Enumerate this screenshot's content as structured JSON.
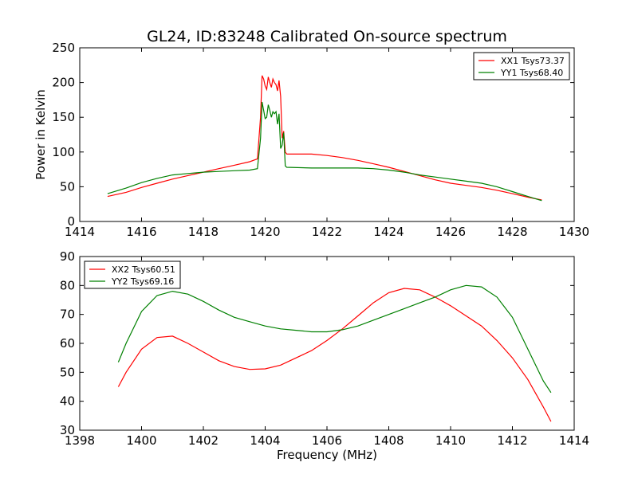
{
  "chart_data": [
    {
      "type": "line",
      "title": "GL24, ID:83248 Calibrated On-source spectrum",
      "xlabel": "",
      "ylabel": "Power in Kelvin",
      "xlim": [
        1414,
        1430
      ],
      "ylim": [
        0,
        250
      ],
      "xticks": [
        1414,
        1416,
        1418,
        1420,
        1422,
        1424,
        1426,
        1428,
        1430
      ],
      "yticks": [
        0,
        50,
        100,
        150,
        200,
        250
      ],
      "legend": "top-right",
      "grid": false,
      "series": [
        {
          "name": "XX1 Tsys73.37",
          "color": "#ff0000",
          "points": [
            [
              1414.9,
              36
            ],
            [
              1415.5,
              42
            ],
            [
              1416,
              49
            ],
            [
              1416.5,
              55
            ],
            [
              1417,
              61
            ],
            [
              1417.5,
              66
            ],
            [
              1418,
              71
            ],
            [
              1418.5,
              76
            ],
            [
              1419,
              81
            ],
            [
              1419.5,
              86
            ],
            [
              1419.75,
              90
            ],
            [
              1419.85,
              150
            ],
            [
              1419.9,
              210
            ],
            [
              1419.95,
              205
            ],
            [
              1420.0,
              195
            ],
            [
              1420.05,
              190
            ],
            [
              1420.1,
              208
            ],
            [
              1420.15,
              200
            ],
            [
              1420.2,
              193
            ],
            [
              1420.25,
              205
            ],
            [
              1420.3,
              200
            ],
            [
              1420.35,
              197
            ],
            [
              1420.4,
              188
            ],
            [
              1420.45,
              203
            ],
            [
              1420.5,
              180
            ],
            [
              1420.55,
              120
            ],
            [
              1420.6,
              130
            ],
            [
              1420.65,
              100
            ],
            [
              1420.7,
              97
            ],
            [
              1421.5,
              97
            ],
            [
              1422,
              95
            ],
            [
              1422.5,
              92
            ],
            [
              1423,
              88
            ],
            [
              1423.5,
              83
            ],
            [
              1424,
              78
            ],
            [
              1424.5,
              72
            ],
            [
              1425,
              66
            ],
            [
              1425.5,
              60
            ],
            [
              1426,
              55
            ],
            [
              1426.5,
              52
            ],
            [
              1427,
              49
            ],
            [
              1427.5,
              45
            ],
            [
              1428,
              40
            ],
            [
              1428.5,
              35
            ],
            [
              1428.95,
              31
            ]
          ]
        },
        {
          "name": "YY1 Tsys68.40",
          "color": "#008000",
          "points": [
            [
              1414.9,
              40
            ],
            [
              1415.5,
              48
            ],
            [
              1416,
              56
            ],
            [
              1416.5,
              62
            ],
            [
              1417,
              67
            ],
            [
              1417.5,
              69
            ],
            [
              1418,
              71
            ],
            [
              1418.5,
              72
            ],
            [
              1419,
              73
            ],
            [
              1419.5,
              74
            ],
            [
              1419.75,
              76
            ],
            [
              1419.85,
              120
            ],
            [
              1419.9,
              172
            ],
            [
              1419.95,
              160
            ],
            [
              1420.0,
              148
            ],
            [
              1420.05,
              150
            ],
            [
              1420.1,
              168
            ],
            [
              1420.15,
              160
            ],
            [
              1420.2,
              150
            ],
            [
              1420.25,
              158
            ],
            [
              1420.3,
              155
            ],
            [
              1420.35,
              158
            ],
            [
              1420.4,
              140
            ],
            [
              1420.45,
              155
            ],
            [
              1420.5,
              105
            ],
            [
              1420.55,
              110
            ],
            [
              1420.6,
              128
            ],
            [
              1420.65,
              80
            ],
            [
              1420.7,
              78
            ],
            [
              1421.5,
              77
            ],
            [
              1422,
              77
            ],
            [
              1422.5,
              77
            ],
            [
              1423,
              77
            ],
            [
              1423.5,
              76
            ],
            [
              1424,
              74
            ],
            [
              1424.5,
              71
            ],
            [
              1425,
              67
            ],
            [
              1425.5,
              64
            ],
            [
              1426,
              61
            ],
            [
              1426.5,
              58
            ],
            [
              1427,
              55
            ],
            [
              1427.5,
              50
            ],
            [
              1428,
              43
            ],
            [
              1428.5,
              36
            ],
            [
              1428.95,
              30
            ]
          ]
        }
      ]
    },
    {
      "type": "line",
      "title": "",
      "xlabel": "Frequency (MHz)",
      "ylabel": "",
      "xlim": [
        1398,
        1414
      ],
      "ylim": [
        30,
        90
      ],
      "xticks": [
        1398,
        1400,
        1402,
        1404,
        1406,
        1408,
        1410,
        1412,
        1414
      ],
      "yticks": [
        30,
        40,
        50,
        60,
        70,
        80,
        90
      ],
      "legend": "top-left",
      "grid": false,
      "series": [
        {
          "name": "XX2 Tsys60.51",
          "color": "#ff0000",
          "points": [
            [
              1399.25,
              45
            ],
            [
              1399.5,
              50
            ],
            [
              1400,
              58
            ],
            [
              1400.5,
              62
            ],
            [
              1401,
              62.5
            ],
            [
              1401.5,
              60
            ],
            [
              1402,
              57
            ],
            [
              1402.5,
              54
            ],
            [
              1403,
              52
            ],
            [
              1403.5,
              51
            ],
            [
              1404,
              51.2
            ],
            [
              1404.5,
              52.5
            ],
            [
              1405,
              55
            ],
            [
              1405.5,
              57.5
            ],
            [
              1406,
              61
            ],
            [
              1406.5,
              65
            ],
            [
              1407,
              69.5
            ],
            [
              1407.5,
              74
            ],
            [
              1408,
              77.5
            ],
            [
              1408.5,
              79
            ],
            [
              1409,
              78.5
            ],
            [
              1409.5,
              76
            ],
            [
              1410,
              73
            ],
            [
              1410.5,
              69.5
            ],
            [
              1411,
              66
            ],
            [
              1411.5,
              61
            ],
            [
              1412,
              55
            ],
            [
              1412.5,
              47.5
            ],
            [
              1413,
              38
            ],
            [
              1413.25,
              33
            ]
          ]
        },
        {
          "name": "YY2 Tsys69.16",
          "color": "#008000",
          "points": [
            [
              1399.25,
              53.5
            ],
            [
              1399.5,
              60
            ],
            [
              1400,
              71
            ],
            [
              1400.5,
              76.5
            ],
            [
              1401,
              78
            ],
            [
              1401.5,
              77
            ],
            [
              1402,
              74.5
            ],
            [
              1402.5,
              71.5
            ],
            [
              1403,
              69
            ],
            [
              1403.5,
              67.5
            ],
            [
              1404,
              66
            ],
            [
              1404.5,
              65
            ],
            [
              1405,
              64.5
            ],
            [
              1405.5,
              64
            ],
            [
              1406,
              64
            ],
            [
              1406.5,
              64.7
            ],
            [
              1407,
              66
            ],
            [
              1407.5,
              68
            ],
            [
              1408,
              70
            ],
            [
              1408.5,
              72
            ],
            [
              1409,
              74
            ],
            [
              1409.5,
              76
            ],
            [
              1410,
              78.5
            ],
            [
              1410.5,
              80
            ],
            [
              1411,
              79.5
            ],
            [
              1411.5,
              76
            ],
            [
              1412,
              69
            ],
            [
              1412.5,
              58
            ],
            [
              1413,
              47
            ],
            [
              1413.25,
              43
            ]
          ]
        }
      ]
    }
  ]
}
